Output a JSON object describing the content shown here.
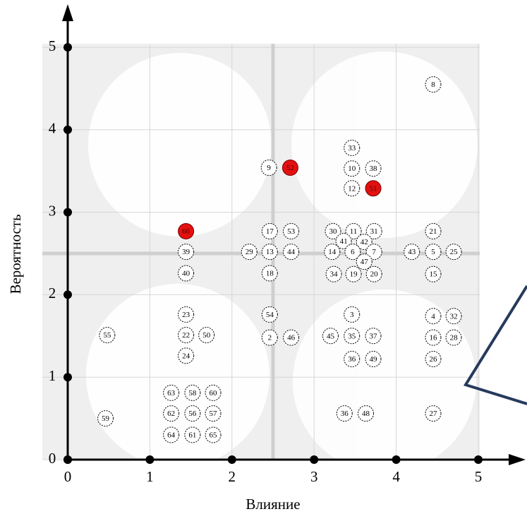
{
  "chart_data": {
    "type": "scatter",
    "x_label": "Влияние",
    "y_label": "Вероятность",
    "xlim": [
      0,
      5
    ],
    "ylim": [
      0,
      5
    ],
    "xticks": [
      0,
      1,
      2,
      3,
      4,
      5
    ],
    "yticks": [
      0,
      1,
      2,
      3,
      4,
      5
    ],
    "grid": true,
    "labels": [
      "8",
      "33",
      "9",
      "52",
      "10",
      "38",
      "12",
      "51",
      "66",
      "17",
      "53",
      "30",
      "11",
      "31",
      "21",
      "41",
      "42",
      "39",
      "29",
      "13",
      "44",
      "14",
      "6",
      "7",
      "43",
      "5",
      "25",
      "47",
      "40",
      "18",
      "34",
      "19",
      "20",
      "15",
      "23",
      "54",
      "3",
      "4",
      "32",
      "55",
      "22",
      "50",
      "2",
      "46",
      "45",
      "35",
      "37",
      "16",
      "28",
      "24",
      "36",
      "49",
      "26",
      "63",
      "58",
      "60",
      "62",
      "56",
      "57",
      "59",
      "36",
      "48",
      "27",
      "64",
      "61",
      "65"
    ],
    "x": [
      4.45,
      3.46,
      2.45,
      2.71,
      3.46,
      3.72,
      3.46,
      3.72,
      1.44,
      2.46,
      2.72,
      3.23,
      3.48,
      3.73,
      4.45,
      3.36,
      3.61,
      1.44,
      2.21,
      2.46,
      2.72,
      3.22,
      3.47,
      3.73,
      4.19,
      4.45,
      4.7,
      3.61,
      1.44,
      2.46,
      3.24,
      3.48,
      3.73,
      4.45,
      1.44,
      2.46,
      3.46,
      4.45,
      4.7,
      0.48,
      1.44,
      1.69,
      2.46,
      2.72,
      3.2,
      3.46,
      3.72,
      4.45,
      4.7,
      1.44,
      3.46,
      3.72,
      4.45,
      1.26,
      1.52,
      1.77,
      1.26,
      1.52,
      1.77,
      0.46,
      3.37,
      3.63,
      4.45,
      1.26,
      1.52,
      1.77
    ],
    "y": [
      4.55,
      3.78,
      3.54,
      3.54,
      3.53,
      3.53,
      3.29,
      3.29,
      2.77,
      2.77,
      2.77,
      2.77,
      2.77,
      2.77,
      2.77,
      2.65,
      2.64,
      2.52,
      2.52,
      2.52,
      2.52,
      2.52,
      2.52,
      2.52,
      2.52,
      2.52,
      2.52,
      2.4,
      2.26,
      2.26,
      2.25,
      2.25,
      2.25,
      2.25,
      1.76,
      1.76,
      1.76,
      1.74,
      1.74,
      1.51,
      1.51,
      1.51,
      1.48,
      1.48,
      1.5,
      1.5,
      1.5,
      1.48,
      1.48,
      1.26,
      1.22,
      1.22,
      1.22,
      0.81,
      0.81,
      0.81,
      0.56,
      0.56,
      0.56,
      0.5,
      0.56,
      0.56,
      0.56,
      0.3,
      0.3,
      0.3
    ],
    "colors": [
      "#ffffff",
      "#ffffff",
      "#ffffff",
      "#e31010",
      "#ffffff",
      "#ffffff",
      "#ffffff",
      "#e31010",
      "#e31010",
      "#ffffff",
      "#ffffff",
      "#ffffff",
      "#ffffff",
      "#ffffff",
      "#ffffff",
      "#ffffff",
      "#ffffff",
      "#ffffff",
      "#ffffff",
      "#ffffff",
      "#ffffff",
      "#ffffff",
      "#ffffff",
      "#ffffff",
      "#ffffff",
      "#ffffff",
      "#ffffff",
      "#ffffff",
      "#ffffff",
      "#ffffff",
      "#ffffff",
      "#ffffff",
      "#ffffff",
      "#ffffff",
      "#ffffff",
      "#ffffff",
      "#ffffff",
      "#ffffff",
      "#ffffff",
      "#ffffff",
      "#ffffff",
      "#ffffff",
      "#ffffff",
      "#ffffff",
      "#ffffff",
      "#ffffff",
      "#ffffff",
      "#ffffff",
      "#ffffff",
      "#ffffff",
      "#ffffff",
      "#ffffff",
      "#ffffff",
      "#ffffff",
      "#ffffff",
      "#ffffff",
      "#ffffff",
      "#ffffff",
      "#ffffff",
      "#ffffff",
      "#ffffff",
      "#ffffff",
      "#ffffff",
      "#ffffff",
      "#ffffff",
      "#ffffff"
    ]
  }
}
